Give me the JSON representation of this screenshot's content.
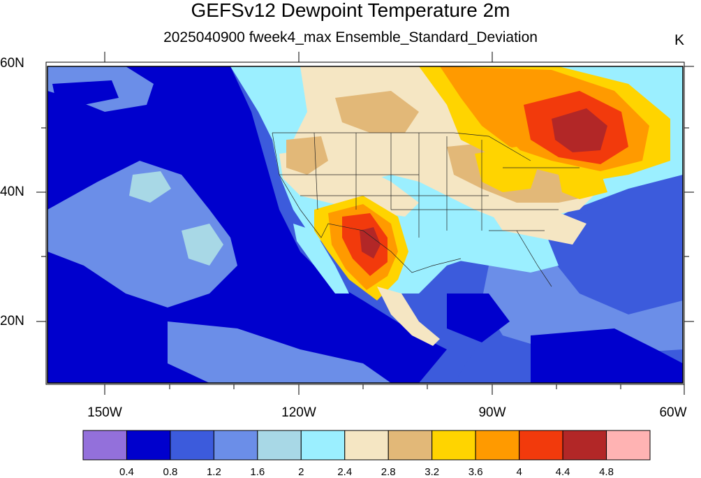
{
  "title": "GEFSv12 Dewpoint Temperature 2m",
  "subtitle": "2025040900 fweek4_max Ensemble_Standard_Deviation",
  "units": "K",
  "lat_labels": [
    {
      "text": "60N",
      "lat": 60
    },
    {
      "text": "40N",
      "lat": 40
    },
    {
      "text": "20N",
      "lat": 20
    }
  ],
  "lon_labels": [
    {
      "text": "150W",
      "lon": -150
    },
    {
      "text": "120W",
      "lon": -120
    },
    {
      "text": "90W",
      "lon": -90
    },
    {
      "text": "60W",
      "lon": -60
    }
  ],
  "colorbar": {
    "colors": [
      "#9370db",
      "#0000cd",
      "#3c5bdc",
      "#6b8ee8",
      "#a8d8e6",
      "#9befff",
      "#f5e6c3",
      "#e2b878",
      "#ffd400",
      "#ff9a00",
      "#f23a0c",
      "#b22727",
      "#ffb3b3"
    ],
    "labels": [
      "0.4",
      "0.8",
      "1.2",
      "1.6",
      "2",
      "2.4",
      "2.8",
      "3.2",
      "3.6",
      "4",
      "4.4",
      "4.8"
    ]
  }
}
